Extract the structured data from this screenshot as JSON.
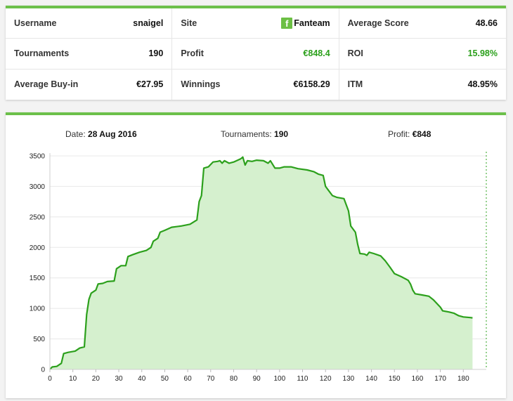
{
  "stats": {
    "rows": [
      [
        {
          "label": "Username",
          "value": "snaigel"
        },
        {
          "label": "Site",
          "value": "Fanteam",
          "icon": "facebook-f-icon"
        },
        {
          "label": "Average Score",
          "value": "48.66"
        }
      ],
      [
        {
          "label": "Tournaments",
          "value": "190"
        },
        {
          "label": "Profit",
          "value": "€848.4",
          "positive": true
        },
        {
          "label": "ROI",
          "value": "15.98%",
          "positive": true
        }
      ],
      [
        {
          "label": "Average Buy-in",
          "value": "€27.95"
        },
        {
          "label": "Winnings",
          "value": "€6158.29"
        },
        {
          "label": "ITM",
          "value": "48.95%"
        }
      ]
    ]
  },
  "chart_header": {
    "date_label": "Date:",
    "date_value": "28 Aug 2016",
    "tournaments_label": "Tournaments:",
    "tournaments_value": "190",
    "profit_label": "Profit:",
    "profit_value": "€848"
  },
  "colors": {
    "accent": "#6cc04a",
    "line": "#2ca01c",
    "fill": "#d5f0ce",
    "positive": "#2ca01c"
  },
  "chart_data": {
    "type": "area",
    "title": "",
    "xlabel": "",
    "ylabel": "",
    "xlim": [
      0,
      190
    ],
    "ylim": [
      0,
      3500
    ],
    "xticks": [
      0,
      10,
      20,
      30,
      40,
      50,
      60,
      70,
      80,
      90,
      100,
      110,
      120,
      130,
      140,
      150,
      160,
      170,
      180
    ],
    "yticks": [
      0,
      500,
      1000,
      1500,
      2000,
      2500,
      3000,
      3500
    ],
    "grid": true,
    "crosshair_x": 190,
    "series": [
      {
        "points": [
          [
            0,
            0
          ],
          [
            1,
            40
          ],
          [
            3,
            50
          ],
          [
            5,
            100
          ],
          [
            6,
            260
          ],
          [
            8,
            280
          ],
          [
            11,
            300
          ],
          [
            13,
            350
          ],
          [
            15,
            370
          ],
          [
            16,
            900
          ],
          [
            17,
            1150
          ],
          [
            18,
            1250
          ],
          [
            20,
            1300
          ],
          [
            21,
            1400
          ],
          [
            23,
            1410
          ],
          [
            25,
            1440
          ],
          [
            28,
            1450
          ],
          [
            29,
            1650
          ],
          [
            31,
            1700
          ],
          [
            33,
            1700
          ],
          [
            34,
            1850
          ],
          [
            36,
            1880
          ],
          [
            39,
            1920
          ],
          [
            42,
            1950
          ],
          [
            44,
            2000
          ],
          [
            45,
            2100
          ],
          [
            47,
            2150
          ],
          [
            48,
            2250
          ],
          [
            50,
            2280
          ],
          [
            53,
            2330
          ],
          [
            57,
            2350
          ],
          [
            61,
            2380
          ],
          [
            64,
            2450
          ],
          [
            65,
            2750
          ],
          [
            66,
            2850
          ],
          [
            67,
            3300
          ],
          [
            69,
            3320
          ],
          [
            71,
            3400
          ],
          [
            73,
            3410
          ],
          [
            74,
            3420
          ],
          [
            75,
            3380
          ],
          [
            76,
            3420
          ],
          [
            78,
            3380
          ],
          [
            80,
            3400
          ],
          [
            83,
            3450
          ],
          [
            84,
            3480
          ],
          [
            85,
            3350
          ],
          [
            86,
            3420
          ],
          [
            88,
            3410
          ],
          [
            90,
            3430
          ],
          [
            93,
            3420
          ],
          [
            95,
            3380
          ],
          [
            96,
            3420
          ],
          [
            98,
            3300
          ],
          [
            100,
            3300
          ],
          [
            102,
            3320
          ],
          [
            105,
            3320
          ],
          [
            108,
            3290
          ],
          [
            112,
            3270
          ],
          [
            115,
            3240
          ],
          [
            117,
            3200
          ],
          [
            119,
            3180
          ],
          [
            120,
            3000
          ],
          [
            121,
            2950
          ],
          [
            123,
            2850
          ],
          [
            125,
            2820
          ],
          [
            128,
            2800
          ],
          [
            130,
            2600
          ],
          [
            131,
            2350
          ],
          [
            133,
            2250
          ],
          [
            134,
            2050
          ],
          [
            135,
            1900
          ],
          [
            137,
            1890
          ],
          [
            138,
            1870
          ],
          [
            139,
            1920
          ],
          [
            141,
            1900
          ],
          [
            144,
            1860
          ],
          [
            146,
            1780
          ],
          [
            148,
            1680
          ],
          [
            150,
            1570
          ],
          [
            153,
            1520
          ],
          [
            156,
            1460
          ],
          [
            157,
            1400
          ],
          [
            158,
            1300
          ],
          [
            159,
            1240
          ],
          [
            162,
            1220
          ],
          [
            165,
            1200
          ],
          [
            167,
            1140
          ],
          [
            168,
            1100
          ],
          [
            170,
            1020
          ],
          [
            171,
            960
          ],
          [
            174,
            940
          ],
          [
            176,
            920
          ],
          [
            178,
            880
          ],
          [
            180,
            860
          ],
          [
            183,
            850
          ],
          [
            184,
            845
          ]
        ]
      }
    ]
  }
}
